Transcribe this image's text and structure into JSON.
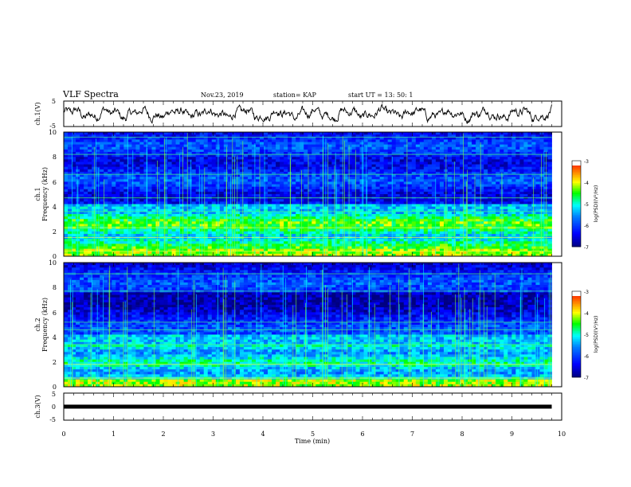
{
  "header": {
    "title": "VLF Spectra",
    "date": "Nov.23, 2019",
    "station": "station= KAP",
    "start": "start  UT  =   13: 50: 1"
  },
  "chart_data": [
    {
      "type": "line",
      "id": "ch1-waveform",
      "ylabel": "ch.1(V)",
      "ylim": [
        -5,
        5
      ],
      "yticks": [
        "5",
        "-5"
      ],
      "xlim": [
        0,
        10
      ],
      "data_extent_min": 9.8,
      "series": [
        {
          "color": "#000000",
          "style": "noisy waveform oscillating roughly between -3 and +3 V"
        }
      ]
    },
    {
      "type": "heatmap",
      "id": "ch1-spectrogram",
      "ylabel_line1": "ch.1",
      "ylabel_line2": "Frequency (kHz)",
      "ylim": [
        0,
        10
      ],
      "yticks": [
        "0",
        "2",
        "4",
        "6",
        "8",
        "10"
      ],
      "xlim": [
        0,
        10
      ],
      "data_extent_min": 9.8,
      "colorbar": {
        "label": "log(PSD)(V²/Hz)",
        "range": [
          -7,
          -3
        ],
        "ticks": [
          "-3",
          "-4",
          "-5",
          "-6",
          "-7"
        ],
        "colors": [
          "#000080",
          "#0000ff",
          "#0080ff",
          "#00ffff",
          "#00ff00",
          "#ffff00",
          "#ff8000",
          "#ff0000",
          "#ffffff"
        ]
      }
    },
    {
      "type": "heatmap",
      "id": "ch2-spectrogram",
      "ylabel_line1": "ch.2",
      "ylabel_line2": "Frequency (kHz)",
      "ylim": [
        0,
        10
      ],
      "yticks": [
        "0",
        "2",
        "4",
        "6",
        "8",
        "10"
      ],
      "xlim": [
        0,
        10
      ],
      "data_extent_min": 9.8,
      "colorbar": {
        "label": "log(PSD)(V²/Hz)",
        "range": [
          -7,
          -3
        ],
        "ticks": [
          "-3",
          "-4",
          "-5",
          "-6",
          "-7"
        ],
        "colors": [
          "#000080",
          "#0000ff",
          "#0080ff",
          "#00ffff",
          "#00ff00",
          "#ffff00",
          "#ff8000",
          "#ff0000",
          "#ffffff"
        ]
      }
    },
    {
      "type": "line",
      "id": "ch3-waveform",
      "ylabel": "ch.3(V)",
      "ylim": [
        -5,
        5
      ],
      "yticks": [
        "5",
        "0",
        "-5"
      ],
      "xlim": [
        0,
        10
      ],
      "data_extent_min": 9.8,
      "series": [
        {
          "color": "#000000",
          "value": 0
        }
      ]
    }
  ],
  "xaxis": {
    "label": "Time  (min)",
    "ticks": [
      "0",
      "1",
      "2",
      "3",
      "4",
      "5",
      "6",
      "7",
      "8",
      "9",
      "10"
    ]
  }
}
